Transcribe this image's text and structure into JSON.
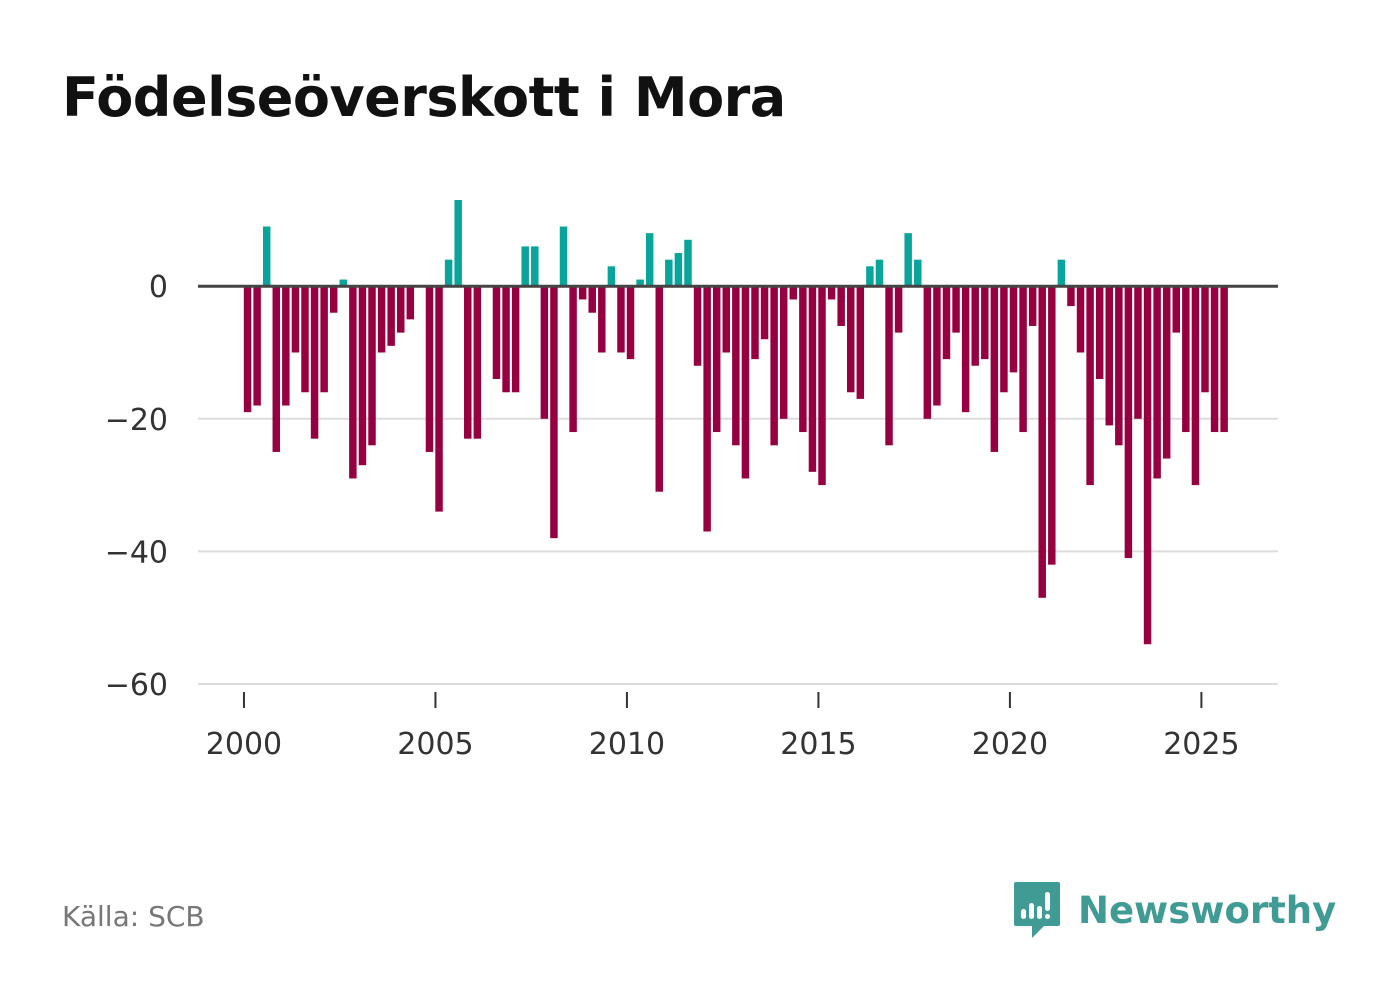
{
  "chart_data": {
    "type": "bar",
    "title": "Födelseöverskott i Mora",
    "xlabel": "",
    "ylabel": "",
    "x_start": 2000,
    "x_step_per_bar": 0.25,
    "values": [
      -19,
      -18,
      9,
      -25,
      -18,
      -10,
      -16,
      -23,
      -16,
      -4,
      1,
      -29,
      -27,
      -24,
      -10,
      -9,
      -7,
      -5,
      0,
      -25,
      -34,
      4,
      13,
      -23,
      -23,
      0,
      -14,
      -16,
      -16,
      6,
      6,
      -20,
      -38,
      9,
      -22,
      -2,
      -4,
      -10,
      3,
      -10,
      -11,
      1,
      8,
      -31,
      4,
      5,
      7,
      -12,
      -37,
      -22,
      -10,
      -24,
      -29,
      -11,
      -8,
      -24,
      -20,
      -2,
      -22,
      -28,
      -30,
      -2,
      -6,
      -16,
      -17,
      3,
      4,
      -24,
      -7,
      8,
      4,
      -20,
      -18,
      -11,
      -7,
      -19,
      -12,
      -11,
      -25,
      -16,
      -13,
      -22,
      -6,
      -47,
      -42,
      4,
      -3,
      -10,
      -30,
      -14,
      -21,
      -24,
      -41,
      -20,
      -54,
      -29,
      -26,
      -7,
      -22,
      -30,
      -16,
      -22,
      -22
    ],
    "ylim": [
      -60,
      13
    ],
    "yticks": [
      0,
      -20,
      -40,
      -60
    ],
    "ytick_labels": [
      "0",
      "−20",
      "−40",
      "−60"
    ],
    "xticks": [
      2000,
      2005,
      2010,
      2015,
      2020,
      2025
    ],
    "xtick_labels": [
      "2000",
      "2005",
      "2010",
      "2015",
      "2020",
      "2025"
    ],
    "xlim": [
      1998.8,
      2027.0
    ],
    "grid": true,
    "positive_color": "#0aa59a",
    "negative_color": "#960040"
  },
  "source": "Källa: SCB",
  "brand": {
    "name": "Newsworthy",
    "icon": "newsworthy-logo-icon",
    "color": "#3f9b93"
  }
}
